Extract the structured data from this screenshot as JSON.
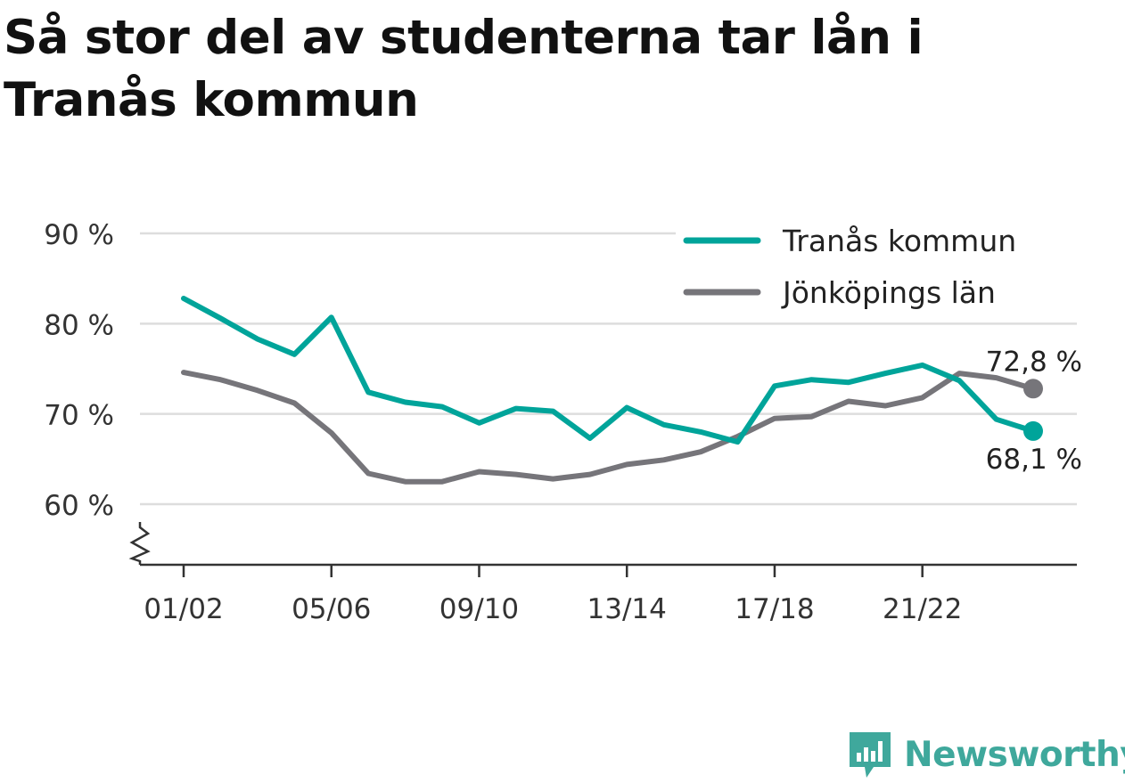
{
  "title": "Så stor del av studenterna tar lån i Tranås kommun",
  "brand": {
    "name": "Newsworthy",
    "icon": "newsworthy-logo-icon"
  },
  "colors": {
    "accent": "#00a49a",
    "secondary": "#76757a",
    "grid": "#dddddd",
    "axis": "#333333"
  },
  "chart_data": {
    "type": "line",
    "x": [
      "01/02",
      "02/03",
      "03/04",
      "04/05",
      "05/06",
      "06/07",
      "07/08",
      "08/09",
      "09/10",
      "10/11",
      "11/12",
      "12/13",
      "13/14",
      "14/15",
      "15/16",
      "16/17",
      "17/18",
      "18/19",
      "19/20",
      "20/21",
      "21/22",
      "22/23",
      "23/24",
      "24/25"
    ],
    "x_tick_labels": [
      "01/02",
      "05/06",
      "09/10",
      "13/14",
      "17/18",
      "21/22"
    ],
    "y_tick_labels": [
      "90 %",
      "80 %",
      "70 %",
      "60 %"
    ],
    "ylim": [
      55,
      90
    ],
    "y_break": true,
    "grid": true,
    "legend_position": "top-right",
    "series": [
      {
        "name": "Tranås kommun",
        "color": "#00a49a",
        "values": [
          82.8,
          80.6,
          78.3,
          76.6,
          80.7,
          72.4,
          71.3,
          70.8,
          69.0,
          70.6,
          70.3,
          67.3,
          70.7,
          68.8,
          68.0,
          66.9,
          73.1,
          73.8,
          73.5,
          74.5,
          75.4,
          73.7,
          69.4,
          68.1
        ],
        "end_label": "68,1 %"
      },
      {
        "name": "Jönköpings län",
        "color": "#76757a",
        "values": [
          74.6,
          73.8,
          72.6,
          71.2,
          67.9,
          63.4,
          62.5,
          62.5,
          63.6,
          63.3,
          62.8,
          63.3,
          64.4,
          64.9,
          65.8,
          67.5,
          69.5,
          69.7,
          71.4,
          70.9,
          71.8,
          74.5,
          74.0,
          72.8
        ],
        "end_label": "72,8 %"
      }
    ]
  }
}
